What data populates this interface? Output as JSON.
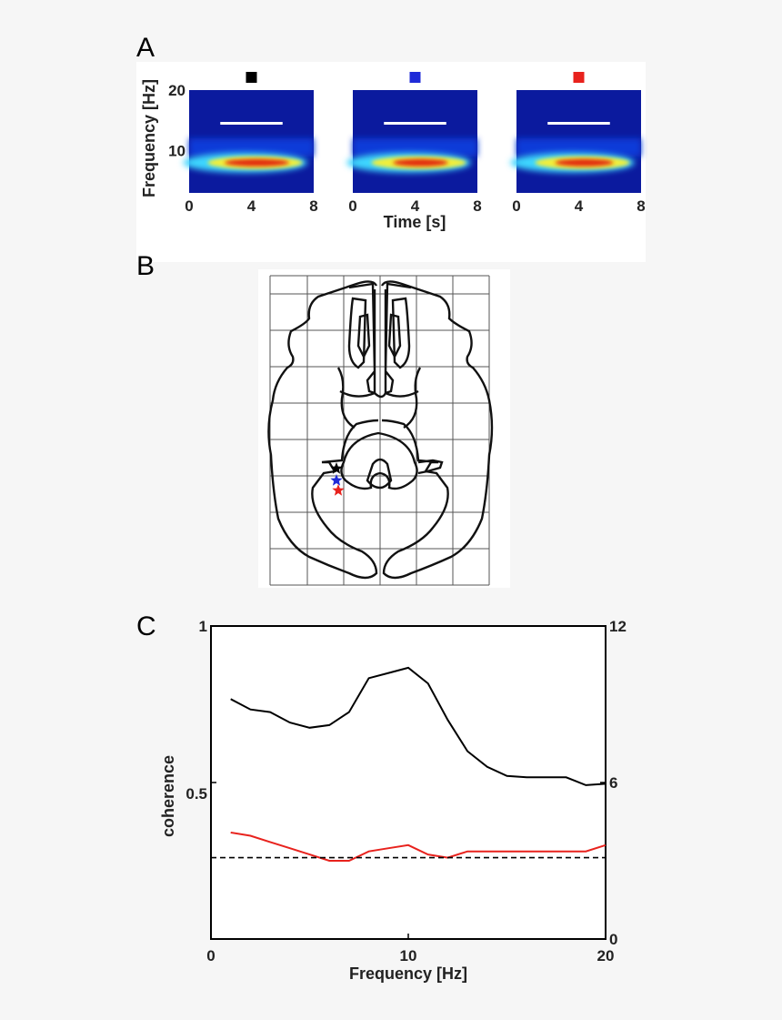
{
  "panels": {
    "a_label": "A",
    "b_label": "B",
    "c_label": "C"
  },
  "chart_data": [
    {
      "type": "heatmap",
      "panel": "A",
      "xlabel": "Time [s]",
      "ylabel": "Frequency [Hz]",
      "xlim": [
        0,
        8
      ],
      "ylim": [
        3,
        20
      ],
      "xticks": [
        "0",
        "4",
        "8"
      ],
      "yticks": [
        "10",
        "20"
      ],
      "spectrograms": [
        {
          "marker_color": "#000000",
          "peak_hz": 8,
          "on_time": [
            2,
            6
          ],
          "peak_power": 1.0
        },
        {
          "marker_color": "#1f2bd8",
          "peak_hz": 8,
          "on_time": [
            2,
            6
          ],
          "peak_power": 0.85
        },
        {
          "marker_color": "#e8221d",
          "peak_hz": 8,
          "on_time": [
            2,
            6
          ],
          "peak_power": 0.9
        }
      ],
      "stimulus_bar": {
        "time": [
          2,
          6
        ],
        "frequency_hz": 14.5,
        "color": "#ffffff"
      }
    },
    {
      "type": "diagram",
      "panel": "B",
      "stars": [
        {
          "color": "#000000"
        },
        {
          "color": "#1f2bd8"
        },
        {
          "color": "#e8221d"
        }
      ]
    },
    {
      "type": "line",
      "panel": "C",
      "xlabel": "Frequency [Hz]",
      "ylabel": "coherence",
      "xlim": [
        0,
        20
      ],
      "ylim_left": [
        0.0,
        1.0
      ],
      "ylim_right": [
        0,
        12
      ],
      "xticks": [
        "0",
        "10",
        "20"
      ],
      "yticks_left": [
        "0.5",
        "1"
      ],
      "yticks_right": [
        "0",
        "6",
        "12"
      ],
      "series": [
        {
          "color": "#000000",
          "axis": "right",
          "x": [
            1,
            2,
            3,
            4,
            5,
            6,
            7,
            8,
            9,
            10,
            11,
            12,
            13,
            14,
            15,
            16,
            17,
            18,
            19,
            20
          ],
          "y": [
            9.2,
            8.8,
            8.7,
            8.3,
            8.1,
            8.2,
            8.7,
            10.0,
            10.2,
            10.4,
            9.8,
            8.4,
            7.2,
            6.6,
            6.25,
            6.2,
            6.2,
            6.2,
            5.9,
            5.95
          ]
        },
        {
          "color": "#e8221d",
          "axis": "left",
          "x": [
            1,
            2,
            3,
            4,
            5,
            6,
            7,
            8,
            9,
            10,
            11,
            12,
            13,
            14,
            15,
            16,
            17,
            18,
            19,
            20
          ],
          "y": [
            0.34,
            0.33,
            0.31,
            0.29,
            0.27,
            0.25,
            0.25,
            0.28,
            0.29,
            0.3,
            0.27,
            0.26,
            0.28,
            0.28,
            0.28,
            0.28,
            0.28,
            0.28,
            0.28,
            0.3
          ]
        },
        {
          "color": "#000000",
          "style": "dashed",
          "axis": "left",
          "x": [
            0,
            20
          ],
          "y": [
            0.26,
            0.26
          ]
        }
      ]
    }
  ]
}
